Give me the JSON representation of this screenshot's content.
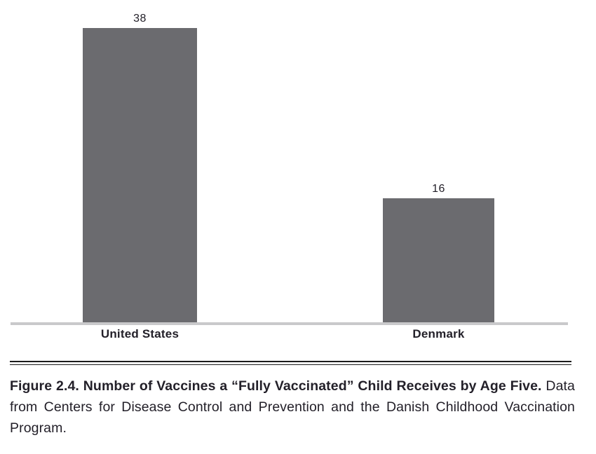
{
  "chart_data": {
    "type": "bar",
    "categories": [
      "United States",
      "Denmark"
    ],
    "values": [
      38,
      16
    ],
    "value_labels": [
      "38",
      "16"
    ],
    "title": "",
    "xlabel": "",
    "ylabel": "",
    "ylim": [
      0,
      38
    ],
    "grid": false,
    "legend": false,
    "bar_color": "#6b6b6f",
    "baseline_color": "#c9c9cb"
  },
  "figure": {
    "caption": {
      "bold": "Figure 2.4. Number of Vaccines a “Fully Vaccinated” Child Receives by Age Five.",
      "regular": " Data from Centers for Disease Control and Prevention and the Danish Childhood Vaccination Program."
    }
  },
  "colors": {
    "bar": "#6b6b6f",
    "axis_line": "#c9c9cb",
    "text": "#232029",
    "rule": "#1c1c1c",
    "background": "#ffffff"
  }
}
